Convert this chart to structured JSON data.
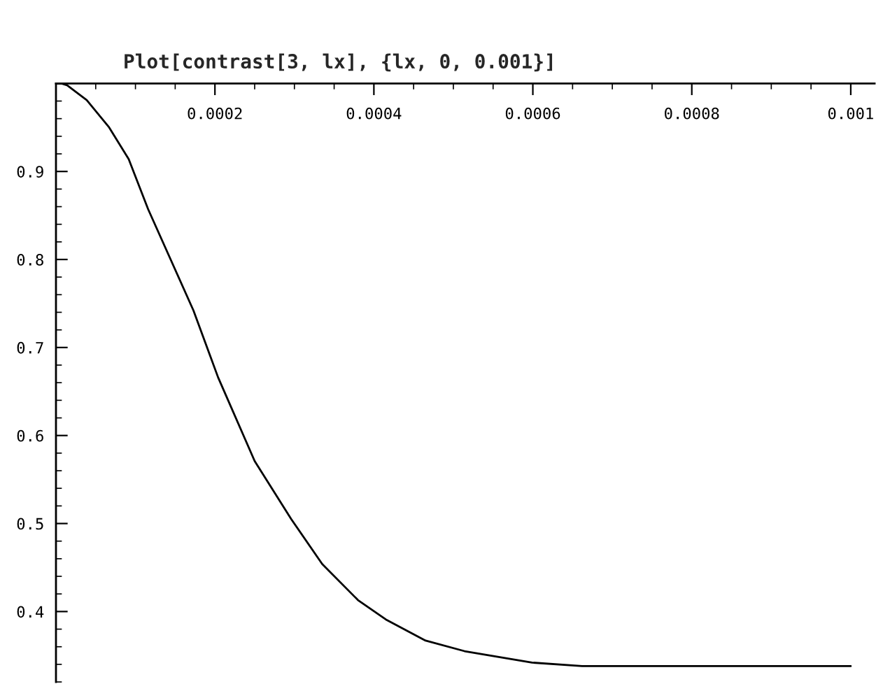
{
  "chart_data": {
    "type": "line",
    "title": "Plot[contrast[3, lx], {lx, 0, 0.001}]",
    "x": [
      0,
      7e-06,
      1.4e-05,
      3.87e-05,
      6.69e-05,
      9.15e-05,
      0.000116,
      0.000173,
      0.000204,
      0.00025,
      0.000296,
      0.000335,
      0.00038,
      0.000415,
      0.000465,
      0.000514,
      0.000599,
      0.000662,
      0.001
    ],
    "series": [
      {
        "color": "#000000",
        "values": [
          1.0,
          1.0,
          0.998,
          0.981,
          0.95,
          0.914,
          0.857,
          0.742,
          0.666,
          0.571,
          0.505,
          0.454,
          0.413,
          0.391,
          0.367,
          0.355,
          0.342,
          0.338,
          0.338
        ]
      }
    ],
    "xlim": [
      0,
      0.00103
    ],
    "ylim": [
      0.32,
      1.0
    ],
    "xticks": [
      0.0002,
      0.0004,
      0.0006,
      0.0008,
      0.001
    ],
    "yticks": [
      0.4,
      0.5,
      0.6,
      0.7,
      0.8,
      0.9
    ],
    "grid": false,
    "legend": false,
    "marker": "none",
    "line_style": "solid"
  }
}
